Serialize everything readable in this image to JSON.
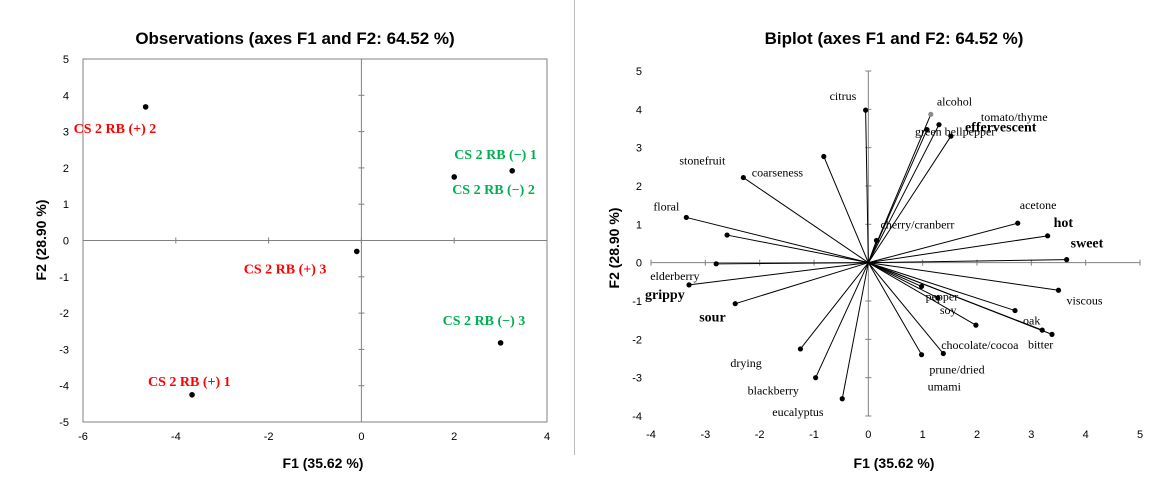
{
  "chart_data": [
    {
      "type": "scatter",
      "title": "Observations (axes F1 and F2: 64.52 %)",
      "xlabel": "F1 (35.62 %)",
      "ylabel": "F2 (28.90 %)",
      "xlim": [
        -6,
        4
      ],
      "ylim": [
        -5,
        5
      ],
      "xticks": [
        -6,
        -4,
        -2,
        0,
        2,
        4
      ],
      "yticks": [
        -5,
        -4,
        -3,
        -2,
        -1,
        0,
        1,
        2,
        3,
        4,
        5
      ],
      "grid": false,
      "points": [
        {
          "label": "CS 2 RB (+) 2",
          "x": -4.65,
          "y": 3.68,
          "color": "#ff0000"
        },
        {
          "label": "CS 2 RB (−) 1",
          "x": 3.25,
          "y": 1.92,
          "color": "#00b050"
        },
        {
          "label": "CS 2 RB (−) 2",
          "x": 2.0,
          "y": 1.75,
          "color": "#00b050"
        },
        {
          "label": "CS 2 RB (+) 3",
          "x": -0.1,
          "y": -0.3,
          "color": "#ff0000"
        },
        {
          "label": "CS 2 RB (−) 3",
          "x": 3.0,
          "y": -2.82,
          "color": "#00b050"
        },
        {
          "label": "CS 2 RB (+) 1",
          "x": -3.65,
          "y": -4.25,
          "color": "#ff0000"
        }
      ]
    },
    {
      "type": "scatter",
      "title": "Biplot (axes F1 and F2: 64.52 %)",
      "xlabel": "F1 (35.62 %)",
      "ylabel": "F2 (28.90 %)",
      "xlim": [
        -4,
        5
      ],
      "ylim": [
        -4,
        5
      ],
      "xticks": [
        -4,
        -3,
        -2,
        -1,
        0,
        1,
        2,
        3,
        4,
        5
      ],
      "yticks": [
        -4,
        -3,
        -2,
        -1,
        0,
        1,
        2,
        3,
        4,
        5
      ],
      "grid": false,
      "vectors": [
        {
          "label": "citrus",
          "x": -0.05,
          "y": 3.98,
          "bold": false
        },
        {
          "label": "alcohol",
          "x": 1.15,
          "y": 3.87,
          "bold": false
        },
        {
          "label": "tomato/thyme",
          "x": 1.52,
          "y": 3.3,
          "bold": false
        },
        {
          "label": "green bellpepper",
          "x": 1.08,
          "y": 3.47,
          "bold": false
        },
        {
          "label": "effervescent",
          "x": 1.3,
          "y": 3.6,
          "bold": true
        },
        {
          "label": "coarseness",
          "x": -0.82,
          "y": 2.77,
          "bold": false
        },
        {
          "label": "stonefruit",
          "x": -2.3,
          "y": 2.22,
          "bold": false
        },
        {
          "label": "floral",
          "x": -3.35,
          "y": 1.18,
          "bold": false
        },
        {
          "label": "cherry/cranberr",
          "x": 0.15,
          "y": 0.58,
          "bold": false
        },
        {
          "label": "acetone",
          "x": 2.75,
          "y": 1.03,
          "bold": false
        },
        {
          "label": "hot",
          "x": 3.3,
          "y": 0.7,
          "bold": true
        },
        {
          "label": "sweet",
          "x": 3.65,
          "y": 0.08,
          "bold": true
        },
        {
          "label": "elderberry",
          "x": -2.8,
          "y": -0.03,
          "bold": false
        },
        {
          "label": "grippy",
          "x": -3.3,
          "y": -0.58,
          "bold": true
        },
        {
          "label": "sour",
          "x": -2.45,
          "y": -1.07,
          "bold": true
        },
        {
          "label": "viscous",
          "x": 3.5,
          "y": -0.72,
          "bold": false
        },
        {
          "label": "pepper",
          "x": 0.98,
          "y": -0.62,
          "bold": false
        },
        {
          "label": "soy",
          "x": 1.28,
          "y": -0.92,
          "bold": false
        },
        {
          "label": "oak",
          "x": 2.7,
          "y": -1.25,
          "bold": false
        },
        {
          "label": "chocolate/cocoa",
          "x": 3.2,
          "y": -1.76,
          "bold": false
        },
        {
          "label": "bitter",
          "x": 3.38,
          "y": -1.87,
          "bold": false
        },
        {
          "label": "drying",
          "x": -1.25,
          "y": -2.25,
          "bold": false
        },
        {
          "label": "prune/dried",
          "x": 1.38,
          "y": -2.37,
          "bold": false
        },
        {
          "label": "umami",
          "x": 0.98,
          "y": -2.4,
          "bold": false
        },
        {
          "label": "blackberry",
          "x": -0.97,
          "y": -3.0,
          "bold": false
        },
        {
          "label": "eucalyptus",
          "x": -0.48,
          "y": -3.55,
          "bold": false
        }
      ],
      "extra_unlabeled_vectors": [
        {
          "x": -2.6,
          "y": 0.72
        },
        {
          "x": 1.98,
          "y": -1.63
        }
      ]
    }
  ]
}
